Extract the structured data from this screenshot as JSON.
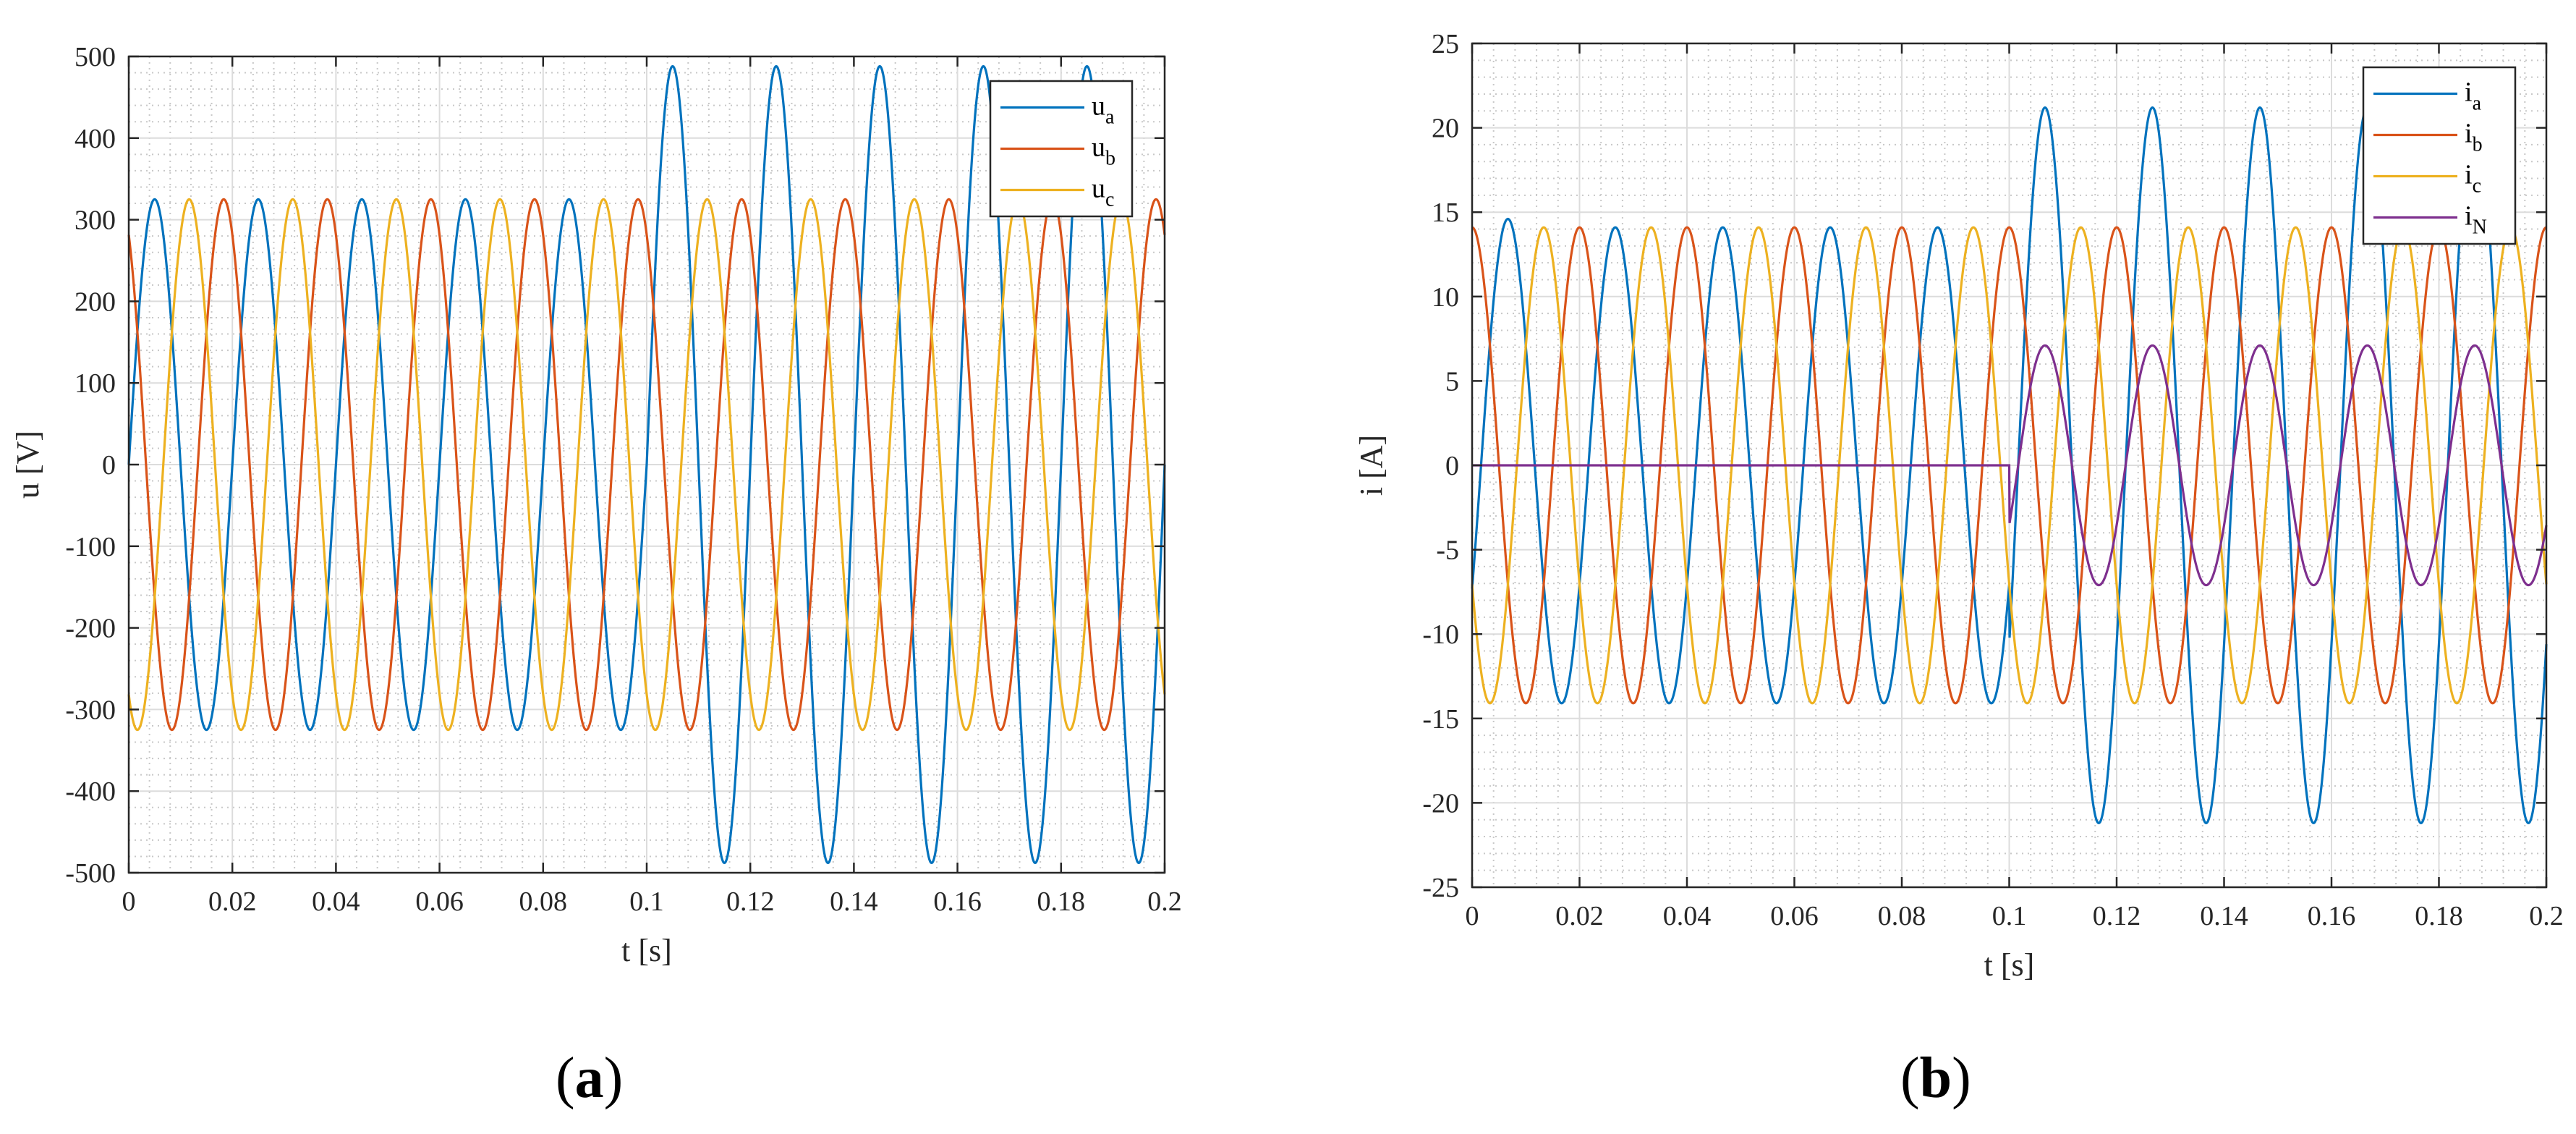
{
  "panels": {
    "a_label": "a",
    "b_label": "b"
  },
  "chart_data": [
    {
      "type": "line",
      "xlabel": "t [s]",
      "ylabel": "u [V]",
      "xlim": [
        0,
        0.2
      ],
      "ylim": [
        -500,
        500
      ],
      "xticks": [
        0,
        0.02,
        0.04,
        0.06,
        0.08,
        0.1,
        0.12,
        0.14,
        0.16,
        0.18,
        0.2
      ],
      "xtick_labels": [
        "0",
        "0.02",
        "0.04",
        "0.06",
        "0.08",
        "0.1",
        "0.12",
        "0.14",
        "0.16",
        "0.18",
        "0.2"
      ],
      "yticks": [
        -500,
        -400,
        -300,
        -200,
        -100,
        0,
        100,
        200,
        300,
        400,
        500
      ],
      "ytick_labels": [
        "-500",
        "-400",
        "-300",
        "-200",
        "-100",
        "0",
        "100",
        "200",
        "300",
        "400",
        "500"
      ],
      "grid": true,
      "minor_grid": true,
      "legend_position": "top-right",
      "frequency_hz": 50,
      "series": [
        {
          "name": "u_a",
          "label_main": "u",
          "label_sub": "a",
          "color": "#0072BD",
          "segments": [
            {
              "t_start": 0,
              "t_end": 0.1,
              "amplitude": 325,
              "phase_deg": 0
            },
            {
              "t_start": 0.1,
              "t_end": 0.2,
              "amplitude": 488,
              "phase_deg": 0
            }
          ]
        },
        {
          "name": "u_b",
          "label_main": "u",
          "label_sub": "b",
          "color": "#D95319",
          "segments": [
            {
              "t_start": 0,
              "t_end": 0.2,
              "amplitude": 325,
              "phase_deg": 120
            }
          ]
        },
        {
          "name": "u_c",
          "label_main": "u",
          "label_sub": "c",
          "color": "#EDB120",
          "segments": [
            {
              "t_start": 0,
              "t_end": 0.2,
              "amplitude": 325,
              "phase_deg": -120
            }
          ]
        }
      ]
    },
    {
      "type": "line",
      "xlabel": "t [s]",
      "ylabel": "i [A]",
      "xlim": [
        0,
        0.2
      ],
      "ylim": [
        -25,
        25
      ],
      "xticks": [
        0,
        0.02,
        0.04,
        0.06,
        0.08,
        0.1,
        0.12,
        0.14,
        0.16,
        0.18,
        0.2
      ],
      "xtick_labels": [
        "0",
        "0.02",
        "0.04",
        "0.06",
        "0.08",
        "0.1",
        "0.12",
        "0.14",
        "0.16",
        "0.18",
        "0.2"
      ],
      "yticks": [
        -25,
        -20,
        -15,
        -10,
        -5,
        0,
        5,
        10,
        15,
        20,
        25
      ],
      "ytick_labels": [
        "-25",
        "-20",
        "-15",
        "-10",
        "-5",
        "0",
        "5",
        "10",
        "15",
        "20",
        "25"
      ],
      "grid": true,
      "minor_grid": true,
      "legend_position": "top-right",
      "frequency_hz": 50,
      "series": [
        {
          "name": "i_a",
          "label_main": "i",
          "label_sub": "a",
          "color": "#0072BD",
          "segments": [
            {
              "t_start": 0,
              "t_end": 0.1,
              "amplitude": 14.1,
              "phase_deg": -30
            },
            {
              "t_start": 0.1,
              "t_end": 0.2,
              "amplitude": 21.2,
              "phase_deg": -30
            }
          ],
          "startup_peak": 14.6
        },
        {
          "name": "i_b",
          "label_main": "i",
          "label_sub": "b",
          "color": "#D95319",
          "segments": [
            {
              "t_start": 0,
              "t_end": 0.2,
              "amplitude": 14.1,
              "phase_deg": 90
            }
          ]
        },
        {
          "name": "i_c",
          "label_main": "i",
          "label_sub": "c",
          "color": "#EDB120",
          "segments": [
            {
              "t_start": 0,
              "t_end": 0.2,
              "amplitude": 14.1,
              "phase_deg": -150
            }
          ]
        },
        {
          "name": "i_N",
          "label_main": "i",
          "label_sub": "N",
          "color": "#7E2F8E",
          "segments": [
            {
              "t_start": 0,
              "t_end": 0.1,
              "amplitude": 0,
              "phase_deg": 0
            },
            {
              "t_start": 0.1,
              "t_end": 0.2,
              "amplitude": 7.1,
              "phase_deg": -30
            }
          ]
        }
      ]
    }
  ]
}
